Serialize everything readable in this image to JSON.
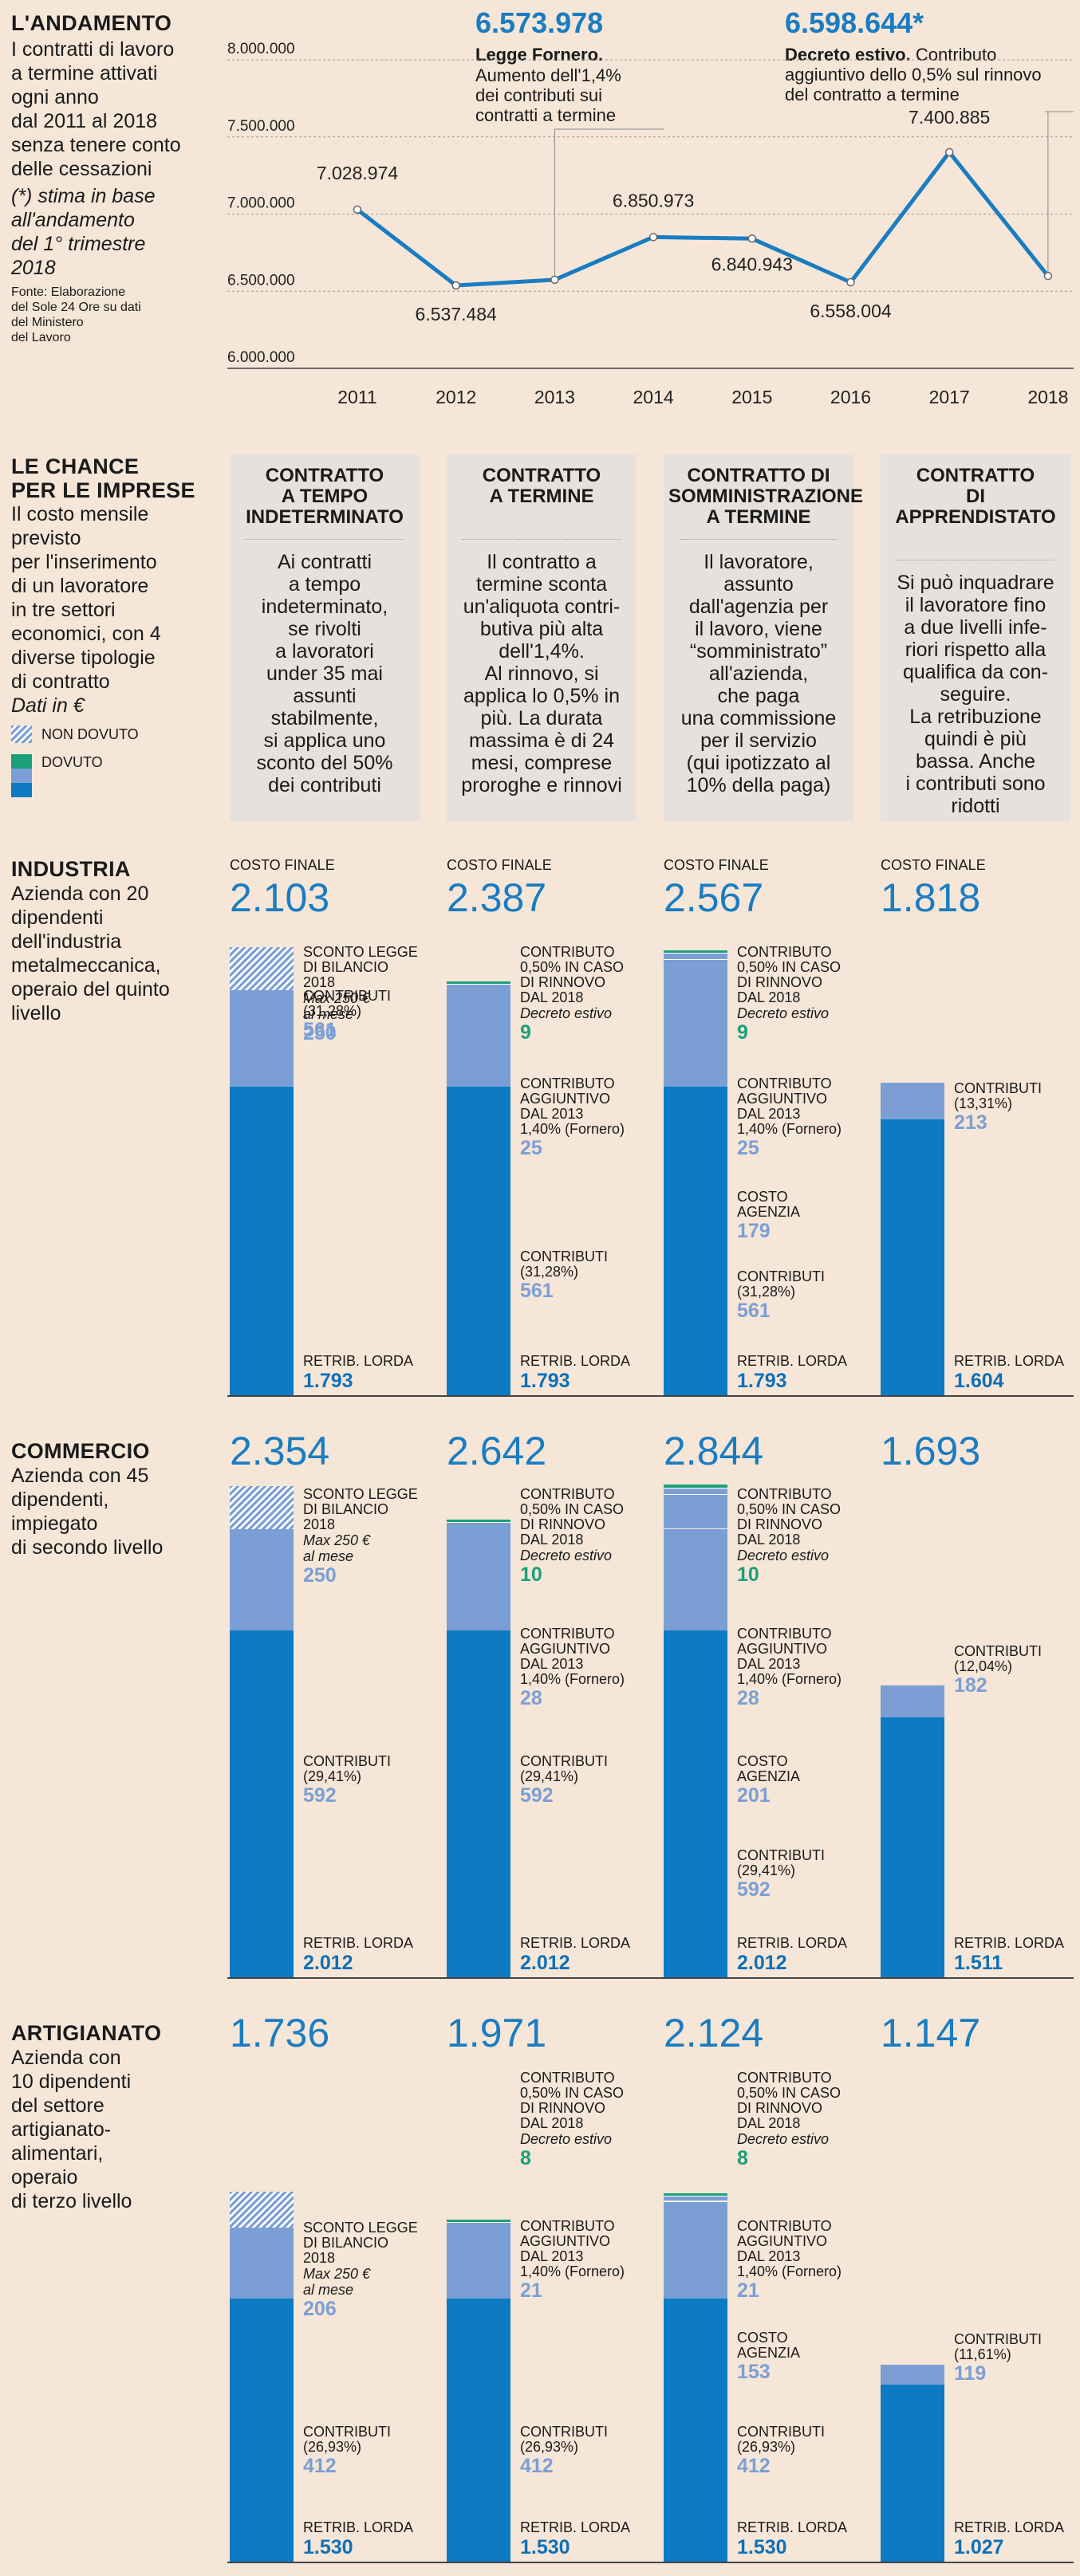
{
  "andamento": {
    "title": "L'ANDAMENTO",
    "desc_lines": [
      "I contratti di lavoro",
      "a termine attivati",
      "ogni anno",
      "dal 2011 al 2018",
      "senza tenere conto",
      "delle cessazioni"
    ],
    "note_lines": [
      "(*) stima in base",
      "all'andamento",
      "del 1° trimestre",
      "2018"
    ],
    "source_lines": [
      "Fonte: Elaborazione",
      "del Sole 24 Ore su dati",
      "del Ministero",
      "del Lavoro"
    ]
  },
  "callouts": {
    "fornero": {
      "value": "6.573.978",
      "title": "Legge Fornero.",
      "lines": [
        "Aumento dell'1,4%",
        "dei contributi sui",
        "contratti a termine"
      ]
    },
    "decreto": {
      "value": "6.598.644*",
      "title": "Decreto estivo.",
      "line1": "Contributo",
      "lines": [
        "aggiuntivo dello 0,5% sul rinnovo",
        "del contratto a termine"
      ]
    }
  },
  "chart_data": {
    "type": "line",
    "title": "L'ANDAMENTO",
    "x": [
      "2011",
      "2012",
      "2013",
      "2014",
      "2015",
      "2016",
      "2017",
      "2018"
    ],
    "series": [
      {
        "name": "Contratti a termine attivati",
        "values": [
          7028974,
          6537484,
          6573978,
          6850973,
          6840943,
          6558004,
          7400885,
          6598644
        ]
      }
    ],
    "data_labels": [
      "7.028.974",
      "6.537.484",
      "",
      "6.850.973",
      "6.840.943",
      "6.558.004",
      "7.400.885",
      ""
    ],
    "y_ticks": [
      "8.000.000",
      "7.500.000",
      "7.000.000",
      "6.500.000",
      "6.000.000"
    ],
    "ylim": [
      6000000,
      8000000
    ],
    "xlabel": "",
    "ylabel": "",
    "color": "#1a7cc1"
  },
  "chance": {
    "title_lines": [
      "LE CHANCE",
      "PER LE IMPRESE"
    ],
    "desc_lines": [
      "Il costo mensile",
      "previsto",
      "per l'inserimento",
      "di un lavoratore",
      "in tre settori",
      "economici, con 4",
      "diverse tipologie",
      "di contratto"
    ],
    "unit": "Dati in €",
    "legend_nondovuto": "NON DOVUTO",
    "legend_dovuto": "DOVUTO"
  },
  "cards": [
    {
      "title_lines": [
        "CONTRATTO",
        "A TEMPO",
        "INDETERMINATO"
      ],
      "body_lines": [
        "Ai contratti",
        "a tempo",
        "indeterminato,",
        "se rivolti",
        "a lavoratori",
        "under 35 mai",
        "assunti",
        "stabilmente,",
        "si applica uno",
        "sconto del 50%",
        "dei contributi"
      ]
    },
    {
      "title_lines": [
        "CONTRATTO",
        "A TERMINE"
      ],
      "body_lines": [
        "Il contratto a",
        "termine sconta",
        "un'aliquota contri-",
        "butiva più alta",
        "dell'1,4%.",
        "Al rinnovo, si",
        "applica lo 0,5% in",
        "più. La durata",
        "massima è di 24",
        "mesi, comprese",
        "proroghe e rinnovi"
      ]
    },
    {
      "title_lines": [
        "CONTRATTO DI",
        "SOMMINISTRAZIONE",
        "A TERMINE"
      ],
      "body_lines": [
        "Il lavoratore,",
        "assunto",
        "dall'agenzia per",
        "il lavoro, viene",
        "“somministrato”",
        "all'azienda,",
        "che paga",
        "una commissione",
        "per il servizio",
        "(qui ipotizzato al",
        "10% della paga)"
      ]
    },
    {
      "title_lines": [
        "CONTRATTO",
        "DI APPRENDISTATO"
      ],
      "body_lines": [
        "Si può inquadrare",
        "il lavoratore fino",
        "a due livelli infe-",
        "riori rispetto  alla",
        "qualifica da con-",
        "seguire.",
        "La retribuzione",
        "quindi è più",
        "bassa. Anche",
        "i contributi sono",
        "ridotti"
      ]
    }
  ],
  "labels": {
    "costo_finale": "COSTO FINALE",
    "sconto": [
      "SCONTO LEGGE",
      "DI BILANCIO",
      "2018"
    ],
    "sconto_note": [
      "Max 250 €",
      "al mese"
    ],
    "rinnovo": [
      "CONTRIBUTO",
      "0,50% IN CASO",
      "DI RINNOVO",
      "DAL 2018"
    ],
    "rinnovo_note": "Decreto estivo",
    "aggiuntivo": [
      "CONTRIBUTO",
      "AGGIUNTIVO",
      "DAL 2013",
      "1,40% (Fornero)"
    ],
    "agenzia": [
      "COSTO",
      "AGENZIA"
    ],
    "contributi": "CONTRIBUTI",
    "retrib": "RETRIB. LORDA"
  },
  "sectors": [
    {
      "name": "INDUSTRIA",
      "desc_lines": [
        "Azienda con 20",
        "dipendenti",
        "dell'industria",
        "metalmeccanica,",
        "operaio del quinto",
        "livello"
      ],
      "cols": [
        {
          "total": "2.103",
          "retrib": "1.793",
          "contrib_pct": "(31,28%)",
          "contrib": "561",
          "sconto": "250"
        },
        {
          "total": "2.387",
          "retrib": "1.793",
          "contrib_pct": "(31,28%)",
          "contrib": "561",
          "fornero": "25",
          "rinnovo": "9"
        },
        {
          "total": "2.567",
          "retrib": "1.793",
          "contrib_pct": "(31,28%)",
          "contrib": "561",
          "agenzia": "179",
          "fornero": "25",
          "rinnovo": "9"
        },
        {
          "total": "1.818",
          "retrib": "1.604",
          "contrib_pct": "(13,31%)",
          "contrib": "213"
        }
      ]
    },
    {
      "name": "COMMERCIO",
      "desc_lines": [
        "Azienda con 45",
        "dipendenti,",
        "impiegato",
        "di secondo livello"
      ],
      "cols": [
        {
          "total": "2.354",
          "retrib": "2.012",
          "contrib_pct": "(29,41%)",
          "contrib": "592",
          "sconto": "250"
        },
        {
          "total": "2.642",
          "retrib": "2.012",
          "contrib_pct": "(29,41%)",
          "contrib": "592",
          "fornero": "28",
          "rinnovo": "10"
        },
        {
          "total": "2.844",
          "retrib": "2.012",
          "contrib_pct": "(29,41%)",
          "contrib": "592",
          "agenzia": "201",
          "fornero": "28",
          "rinnovo": "10"
        },
        {
          "total": "1.693",
          "retrib": "1.511",
          "contrib_pct": "(12,04%)",
          "contrib": "182"
        }
      ]
    },
    {
      "name": "ARTIGIANATO",
      "desc_lines": [
        "Azienda con",
        "10 dipendenti",
        "del settore",
        "artigianato-",
        "alimentari,",
        "operaio",
        "di terzo livello"
      ],
      "cols": [
        {
          "total": "1.736",
          "retrib": "1.530",
          "contrib_pct": "(26,93%)",
          "contrib": "412",
          "sconto": "206"
        },
        {
          "total": "1.971",
          "retrib": "1.530",
          "contrib_pct": "(26,93%)",
          "contrib": "412",
          "fornero": "21",
          "rinnovo": "8"
        },
        {
          "total": "2.124",
          "retrib": "1.530",
          "contrib_pct": "(26,93%)",
          "contrib": "412",
          "agenzia": "153",
          "fornero": "21",
          "rinnovo": "8"
        },
        {
          "total": "1.147",
          "retrib": "1.027",
          "contrib_pct": "(11,61%)",
          "contrib": "119"
        }
      ]
    }
  ]
}
